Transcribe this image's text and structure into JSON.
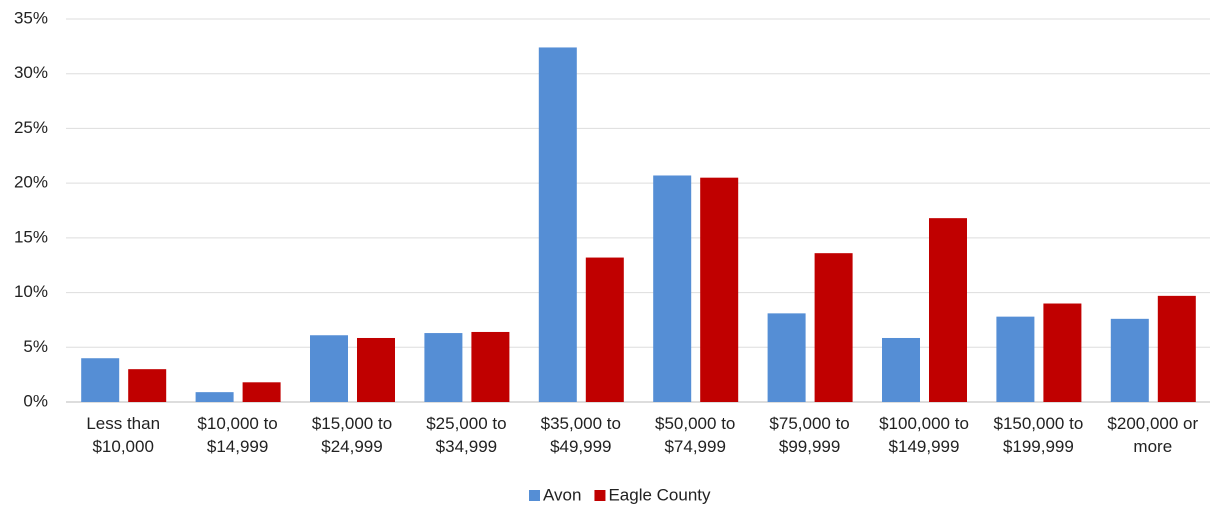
{
  "chart_data": {
    "type": "bar",
    "categories": [
      "Less than $10,000",
      "$10,000 to $14,999",
      "$15,000 to $24,999",
      "$25,000 to $34,999",
      "$35,000 to $49,999",
      "$50,000 to $74,999",
      "$75,000 to $99,999",
      "$100,000 to $149,999",
      "$150,000 to $199,999",
      "$200,000 or more"
    ],
    "series": [
      {
        "name": "Avon",
        "color": "#558ed5",
        "values": [
          4.0,
          0.9,
          6.1,
          6.3,
          32.4,
          20.7,
          8.1,
          5.85,
          7.8,
          7.6
        ]
      },
      {
        "name": "Eagle County",
        "color": "#c00000",
        "values": [
          3.0,
          1.8,
          5.85,
          6.4,
          13.2,
          20.5,
          13.6,
          16.8,
          9.0,
          9.7
        ]
      }
    ],
    "ylim": [
      0,
      35
    ],
    "yticks": [
      {
        "value": 0,
        "label": "0%"
      },
      {
        "value": 5,
        "label": "5%"
      },
      {
        "value": 10,
        "label": "10%"
      },
      {
        "value": 15,
        "label": "15%"
      },
      {
        "value": 20,
        "label": "20%"
      },
      {
        "value": 25,
        "label": "25%"
      },
      {
        "value": 30,
        "label": "30%"
      },
      {
        "value": 35,
        "label": "35%"
      }
    ],
    "grid": true,
    "legend": "bottom"
  }
}
